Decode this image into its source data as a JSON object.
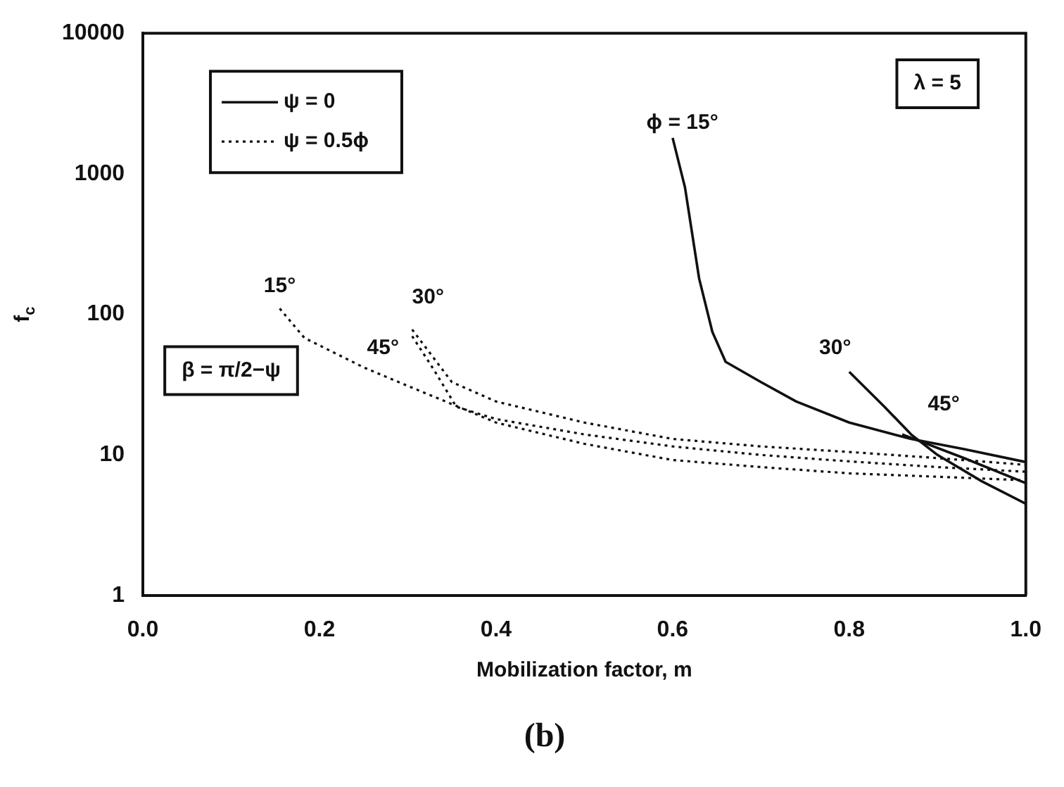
{
  "chart_data": {
    "type": "line",
    "title": "(b)",
    "xlabel": "Mobilization factor, m",
    "ylabel": "f$_{c}$",
    "log": "y",
    "grid": false,
    "legend": "top left",
    "marker": "none",
    "xlim": [
      0,
      1
    ],
    "xticks": [
      {
        "value": 0,
        "label": "0.0"
      },
      {
        "value": 0.2,
        "label": "0.2"
      },
      {
        "value": 0.4,
        "label": "0.4"
      },
      {
        "value": 0.6,
        "label": "0.6"
      },
      {
        "value": 0.8,
        "label": "0.8"
      },
      {
        "value": 1,
        "label": "1.0"
      }
    ],
    "ylim": [
      1,
      10000
    ],
    "yticks": [
      1,
      10,
      100,
      1000,
      10000
    ],
    "series": [
      {
        "name": "ψ = 0",
        "color": "#111111",
        "line_style": "solid",
        "x": [
          0.6,
          0.614,
          0.63,
          0.645,
          0.66,
          0.7,
          0.74,
          0.8,
          0.87,
          0.93,
          1.0
        ],
        "values": [
          1800,
          800,
          180,
          75,
          46,
          33,
          24,
          17,
          13,
          11,
          8.9
        ]
      },
      {
        "color": "#111111",
        "line_style": "solid",
        "x": [
          0.8,
          0.84,
          0.87,
          0.9,
          0.95,
          1.0
        ],
        "values": [
          39,
          22,
          14,
          10,
          6.5,
          4.5
        ]
      },
      {
        "color": "#111111",
        "line_style": "solid",
        "x": [
          0.86,
          0.93,
          1.0
        ],
        "values": [
          14,
          9.5,
          6.3
        ]
      },
      {
        "name": "ψ = 0.5ϕ",
        "color": "#111111",
        "line_style": "dotted",
        "x": [
          0.155,
          0.183,
          0.25,
          0.3,
          0.35,
          0.4,
          0.5,
          0.6,
          0.7,
          0.8,
          0.9,
          1.0
        ],
        "values": [
          110,
          68,
          42,
          31,
          23,
          17,
          12,
          9.2,
          8.2,
          7.4,
          7,
          6.6
        ]
      },
      {
        "color": "#111111",
        "line_style": "dotted",
        "x": [
          0.305,
          0.35,
          0.4,
          0.5,
          0.6,
          0.7,
          0.8,
          0.9,
          1.0
        ],
        "values": [
          78,
          33,
          24,
          17,
          13,
          11.5,
          10.5,
          9.5,
          8.5
        ]
      },
      {
        "color": "#111111",
        "line_style": "dotted",
        "x": [
          0.305,
          0.33,
          0.355,
          0.4,
          0.5,
          0.6,
          0.7,
          0.8,
          0.9,
          1.0
        ],
        "values": [
          70,
          40,
          22,
          18,
          14,
          11.5,
          10,
          9,
          8.2,
          7.6
        ]
      }
    ],
    "annotations": [
      "ϕ = 15°",
      "15°",
      "30°",
      "45°",
      "30°",
      "45°",
      "λ = 5",
      "β = π/2−ψ"
    ]
  }
}
